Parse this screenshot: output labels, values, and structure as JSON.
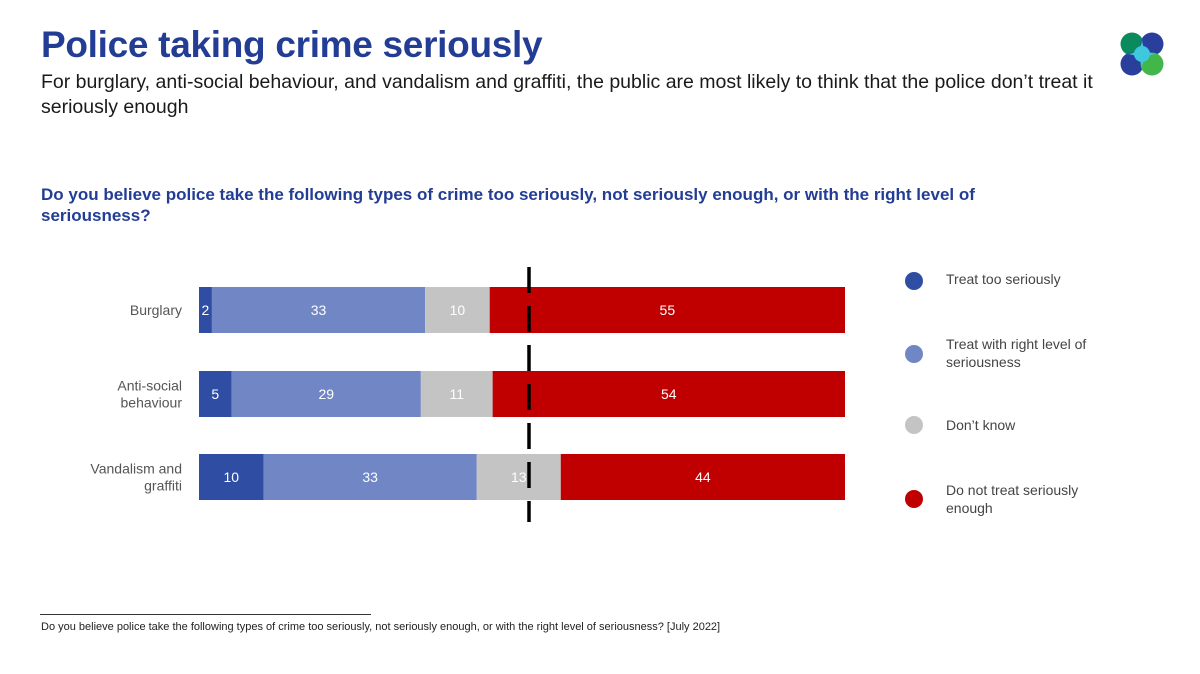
{
  "header": {
    "title": "Police taking crime seriously",
    "subtitle": "For burglary, anti-social behaviour, and vandalism and graffiti, the public are most likely to think that the police don’t treat it seriously enough",
    "question": "Do you believe police take the following types of crime too seriously, not seriously enough, or with the right level of seriousness?"
  },
  "logo": {
    "icon": "ipsos-style-logo-icon",
    "colors": [
      "#0b8a5e",
      "#2a3f9d",
      "#3ec8e0",
      "#43b649"
    ]
  },
  "legend": {
    "items": [
      {
        "label": "Treat too seriously",
        "color": "#2f4ea3"
      },
      {
        "label": "Treat with right level of seriousness",
        "color": "#7186c4"
      },
      {
        "label": "Don’t know",
        "color": "#c4c4c4"
      },
      {
        "label": "Do not treat seriously enough",
        "color": "#c00000"
      }
    ]
  },
  "chart_data": {
    "type": "bar",
    "orientation": "horizontal",
    "stacked": true,
    "categories": [
      "Burglary",
      "Anti-social behaviour",
      "Vandalism and graffiti"
    ],
    "category_lines": [
      [
        "Burglary"
      ],
      [
        "Anti-social",
        "behaviour"
      ],
      [
        "Vandalism and",
        "graffiti"
      ]
    ],
    "series": [
      {
        "name": "Treat too seriously",
        "color": "#2f4ea3",
        "values": [
          2,
          5,
          10
        ]
      },
      {
        "name": "Treat with right level of seriousness",
        "color": "#7186c4",
        "values": [
          33,
          29,
          33
        ]
      },
      {
        "name": "Don’t know",
        "color": "#c4c4c4",
        "values": [
          10,
          11,
          13
        ]
      },
      {
        "name": "Do not treat seriously enough",
        "color": "#c00000",
        "values": [
          55,
          54,
          44
        ]
      }
    ],
    "reference_line": {
      "style": "dashed",
      "color": "#000000"
    },
    "grid": false,
    "legend_position": "right"
  },
  "footnote": "Do you believe police take the following types of crime too seriously, not seriously enough, or with the right level of seriousness? [July 2022]"
}
